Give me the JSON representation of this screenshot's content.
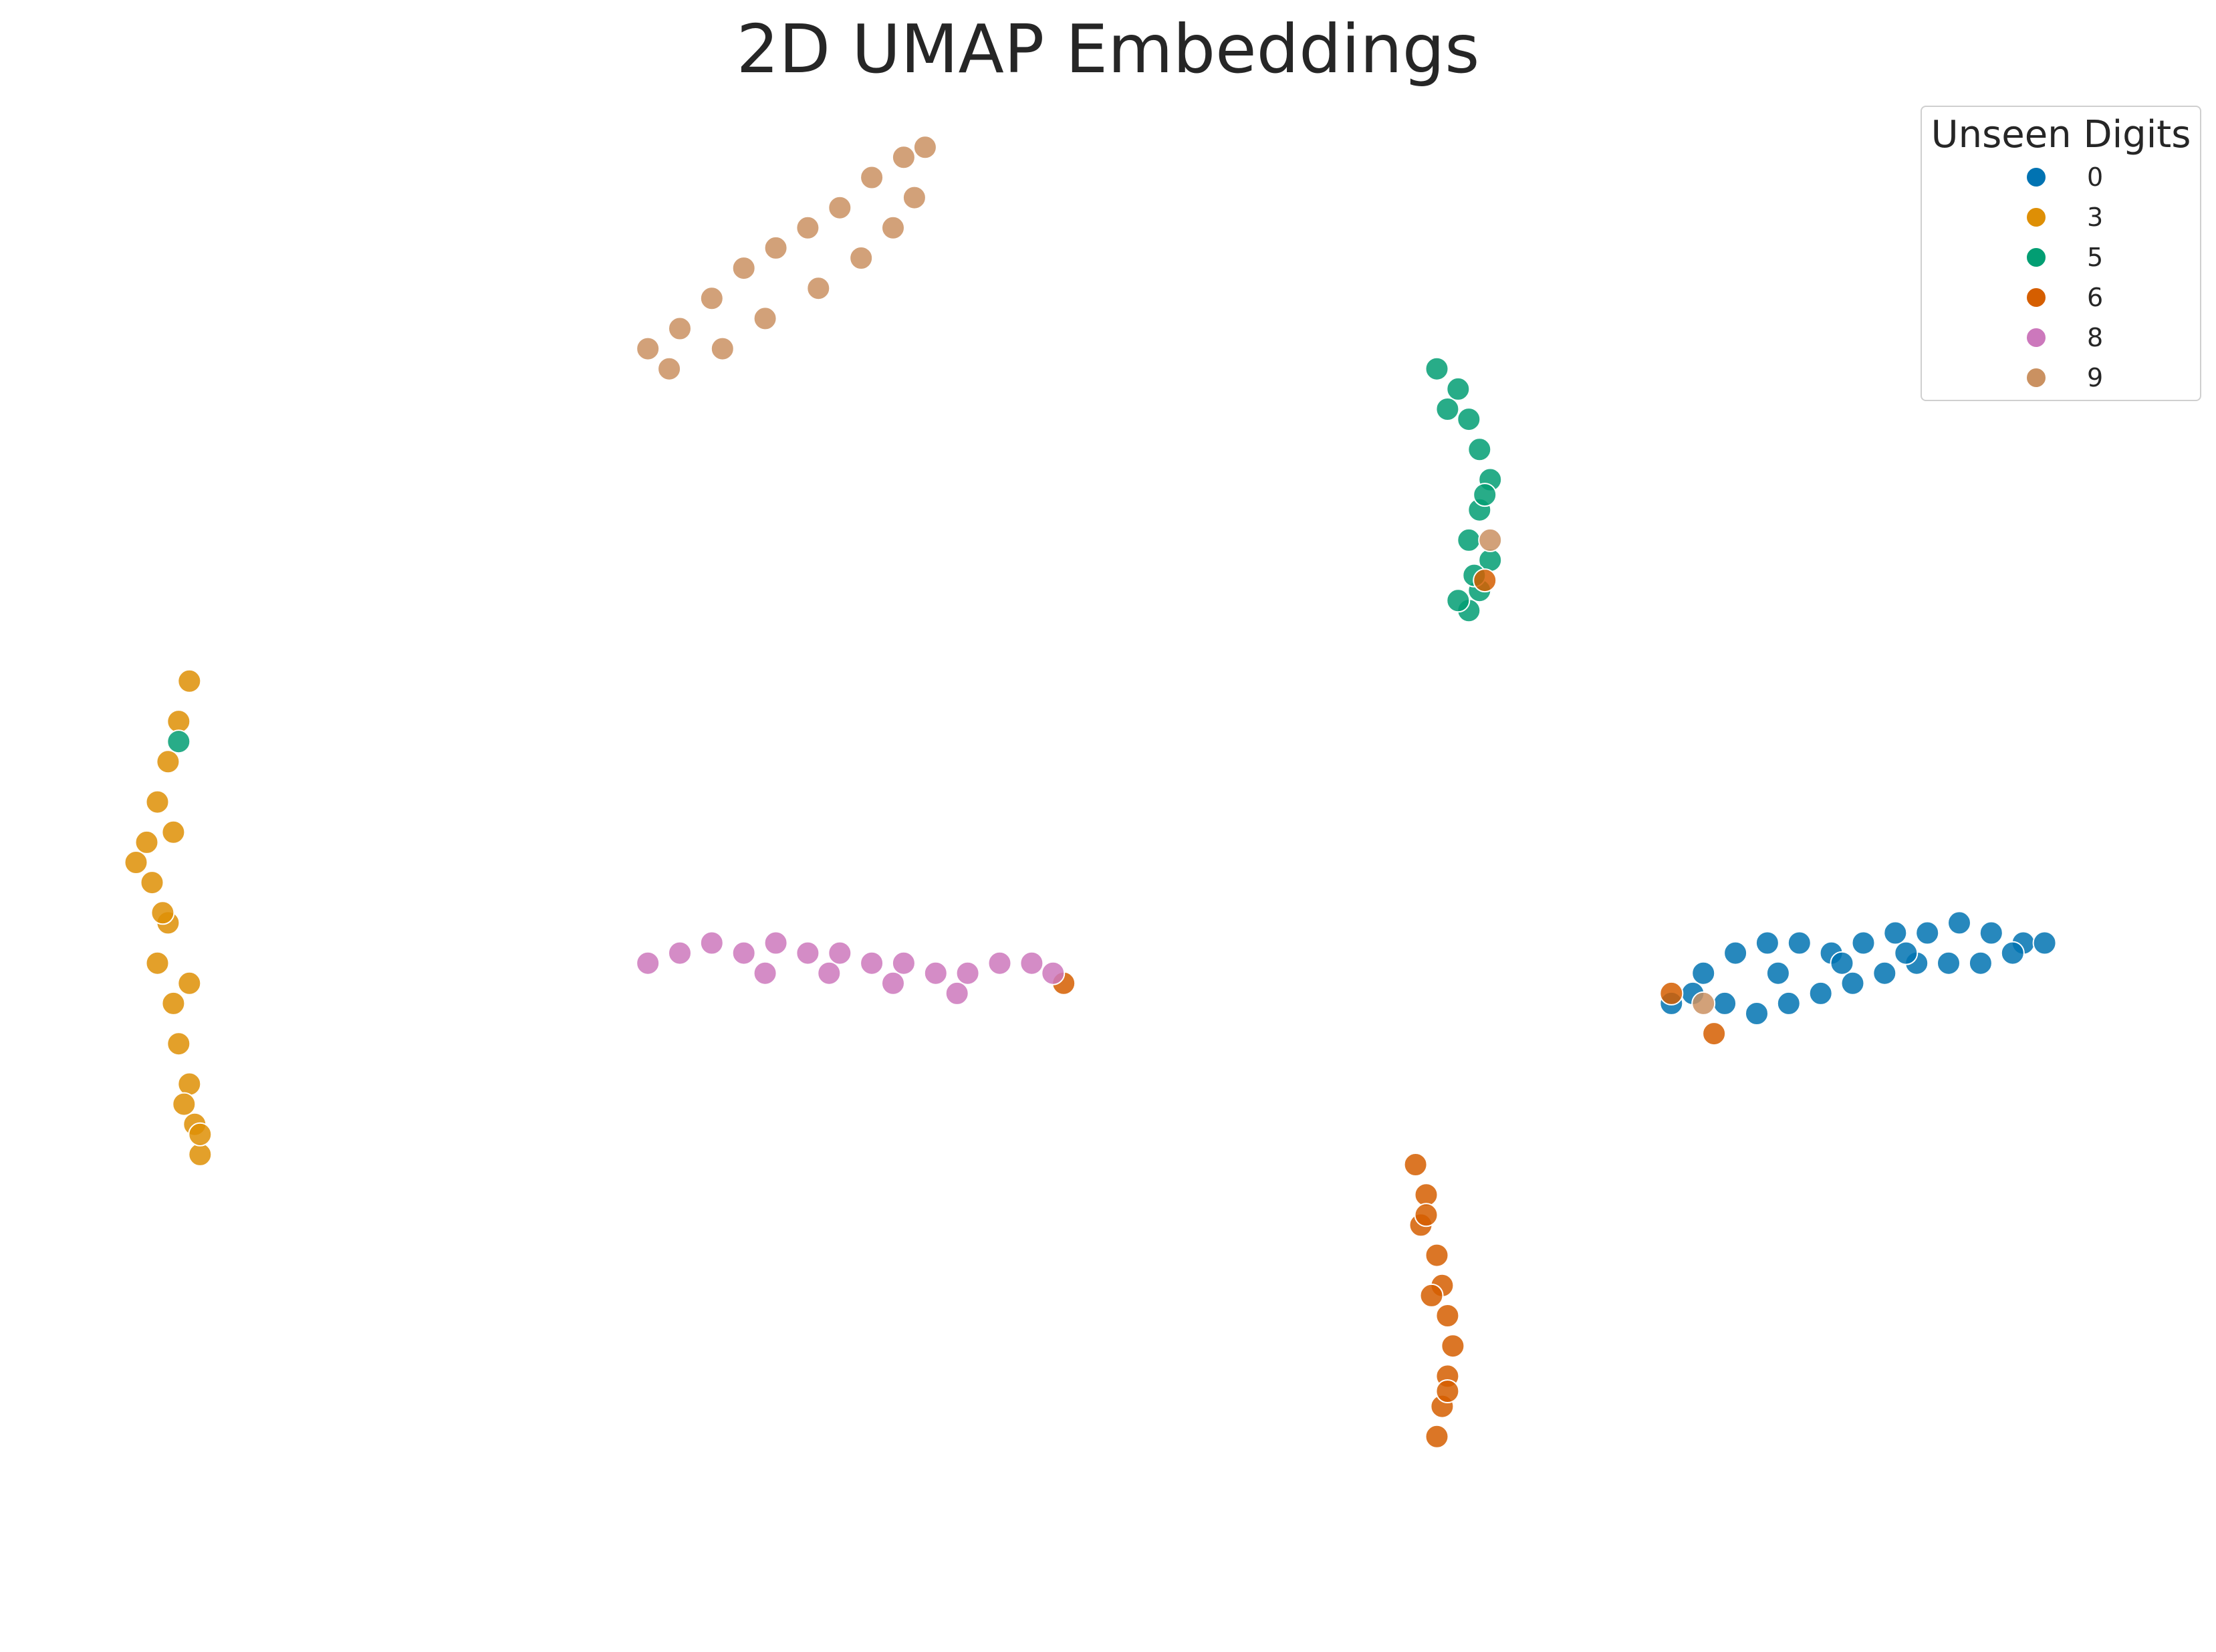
{
  "chart_data": {
    "type": "scatter",
    "title": "2D UMAP Embeddings",
    "xlabel": "",
    "ylabel": "",
    "axes_visible": false,
    "grid": false,
    "legend": {
      "title": "Unseen Digits",
      "placement": "top-right",
      "entries": [
        {
          "label": "0",
          "color": "#0173b2"
        },
        {
          "label": "3",
          "color": "#de8f05"
        },
        {
          "label": "5",
          "color": "#029e73"
        },
        {
          "label": "6",
          "color": "#d55e00"
        },
        {
          "label": "8",
          "color": "#cc78bc"
        },
        {
          "label": "9",
          "color": "#ca9161"
        }
      ]
    },
    "xlim": [
      -4,
      16
    ],
    "ylim": [
      -1,
      14
    ],
    "series": [
      {
        "name": "0",
        "color": "#0173b2",
        "points": [
          [
            11.3,
            5.1
          ],
          [
            11.6,
            5.4
          ],
          [
            11.9,
            5.6
          ],
          [
            12.2,
            5.7
          ],
          [
            12.5,
            5.7
          ],
          [
            12.8,
            5.6
          ],
          [
            13.1,
            5.7
          ],
          [
            13.4,
            5.8
          ],
          [
            13.7,
            5.8
          ],
          [
            14.0,
            5.9
          ],
          [
            14.3,
            5.8
          ],
          [
            14.6,
            5.7
          ],
          [
            11.5,
            5.2
          ],
          [
            11.8,
            5.1
          ],
          [
            12.1,
            5.0
          ],
          [
            12.4,
            5.1
          ],
          [
            12.7,
            5.2
          ],
          [
            13.0,
            5.3
          ],
          [
            13.3,
            5.4
          ],
          [
            13.6,
            5.5
          ],
          [
            13.9,
            5.5
          ],
          [
            14.2,
            5.5
          ],
          [
            14.5,
            5.6
          ],
          [
            14.8,
            5.7
          ],
          [
            12.3,
            5.4
          ],
          [
            12.9,
            5.5
          ],
          [
            13.5,
            5.6
          ]
        ]
      },
      {
        "name": "3",
        "color": "#de8f05",
        "points": [
          [
            -2.6,
            8.3
          ],
          [
            -2.7,
            7.9
          ],
          [
            -2.8,
            7.5
          ],
          [
            -2.9,
            7.1
          ],
          [
            -3.0,
            6.7
          ],
          [
            -2.95,
            6.3
          ],
          [
            -2.8,
            5.9
          ],
          [
            -2.9,
            5.5
          ],
          [
            -2.75,
            5.1
          ],
          [
            -2.7,
            4.7
          ],
          [
            -2.6,
            4.3
          ],
          [
            -2.55,
            3.9
          ],
          [
            -2.5,
            3.6
          ],
          [
            -3.1,
            6.5
          ],
          [
            -2.75,
            6.8
          ],
          [
            -2.85,
            6.0
          ],
          [
            -2.6,
            5.3
          ],
          [
            -2.65,
            4.1
          ],
          [
            -2.5,
            3.8
          ]
        ]
      },
      {
        "name": "5",
        "color": "#029e73",
        "points": [
          [
            9.1,
            11.4
          ],
          [
            9.3,
            11.2
          ],
          [
            9.4,
            10.9
          ],
          [
            9.5,
            10.6
          ],
          [
            9.6,
            10.3
          ],
          [
            9.5,
            10.0
          ],
          [
            9.4,
            9.7
          ],
          [
            9.6,
            9.5
          ],
          [
            9.5,
            9.2
          ],
          [
            9.4,
            9.0
          ],
          [
            9.2,
            11.0
          ],
          [
            9.55,
            10.15
          ],
          [
            9.45,
            9.35
          ],
          [
            -2.7,
            7.7
          ],
          [
            9.3,
            9.1
          ]
        ]
      },
      {
        "name": "6",
        "color": "#d55e00",
        "points": [
          [
            8.9,
            3.5
          ],
          [
            9.0,
            3.2
          ],
          [
            8.95,
            2.9
          ],
          [
            9.1,
            2.6
          ],
          [
            9.15,
            2.3
          ],
          [
            9.2,
            2.0
          ],
          [
            9.25,
            1.7
          ],
          [
            9.2,
            1.4
          ],
          [
            9.15,
            1.1
          ],
          [
            9.1,
            0.8
          ],
          [
            9.0,
            3.0
          ],
          [
            9.05,
            2.2
          ],
          [
            9.2,
            1.25
          ],
          [
            9.55,
            9.3
          ],
          [
            11.3,
            5.2
          ],
          [
            11.7,
            4.8
          ],
          [
            5.6,
            5.3
          ]
        ]
      },
      {
        "name": "8",
        "color": "#cc78bc",
        "points": [
          [
            1.7,
            5.5
          ],
          [
            2.0,
            5.6
          ],
          [
            2.3,
            5.7
          ],
          [
            2.6,
            5.6
          ],
          [
            2.9,
            5.7
          ],
          [
            3.2,
            5.6
          ],
          [
            3.5,
            5.6
          ],
          [
            3.8,
            5.5
          ],
          [
            4.1,
            5.5
          ],
          [
            4.4,
            5.4
          ],
          [
            4.7,
            5.4
          ],
          [
            5.0,
            5.5
          ],
          [
            5.3,
            5.5
          ],
          [
            5.5,
            5.4
          ],
          [
            2.8,
            5.4
          ],
          [
            3.4,
            5.4
          ],
          [
            4.0,
            5.3
          ],
          [
            4.6,
            5.2
          ]
        ]
      },
      {
        "name": "9",
        "color": "#ca9161",
        "points": [
          [
            1.7,
            11.6
          ],
          [
            2.0,
            11.8
          ],
          [
            2.3,
            12.1
          ],
          [
            2.6,
            12.4
          ],
          [
            2.9,
            12.6
          ],
          [
            3.2,
            12.8
          ],
          [
            3.5,
            13.0
          ],
          [
            3.8,
            13.3
          ],
          [
            4.1,
            13.5
          ],
          [
            4.3,
            13.6
          ],
          [
            1.9,
            11.4
          ],
          [
            2.4,
            11.6
          ],
          [
            2.8,
            11.9
          ],
          [
            3.3,
            12.2
          ],
          [
            3.7,
            12.5
          ],
          [
            4.0,
            12.8
          ],
          [
            4.2,
            13.1
          ],
          [
            11.6,
            5.1
          ],
          [
            9.6,
            9.7
          ]
        ]
      }
    ]
  }
}
